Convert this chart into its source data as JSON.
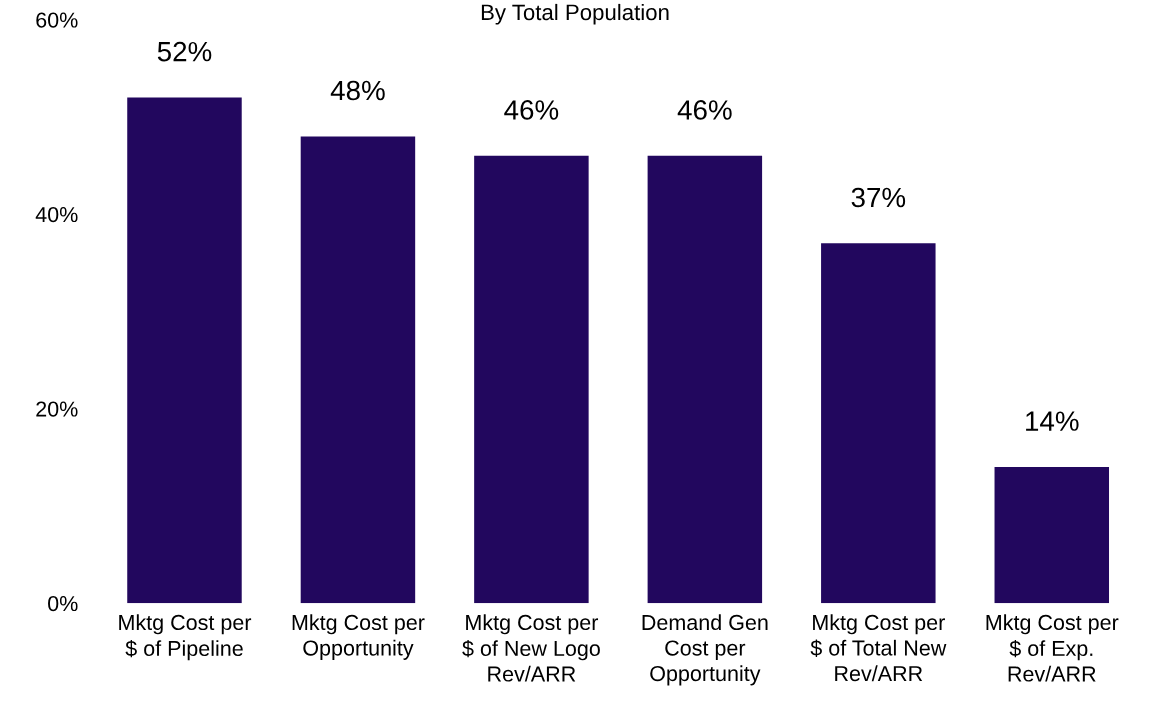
{
  "chart_data": {
    "type": "bar",
    "title": "By Total Population",
    "categories": [
      "Mktg Cost per\n$ of Pipeline",
      "Mktg Cost per\nOpportunity",
      "Mktg Cost per\n$ of New Logo\nRev/ARR",
      "Demand Gen\nCost per\nOpportunity",
      "Mktg Cost per\n$ of Total New\nRev/ARR",
      "Mktg Cost per\n$ of Exp.\nRev/ARR"
    ],
    "values": [
      52,
      48,
      46,
      46,
      37,
      14
    ],
    "value_labels": [
      "52%",
      "48%",
      "46%",
      "46%",
      "37%",
      "14%"
    ],
    "color": "#22075e",
    "ylim": [
      0,
      60
    ],
    "yticks": [
      {
        "value": 0,
        "label": "0%"
      },
      {
        "value": 20,
        "label": "20%"
      },
      {
        "value": 40,
        "label": "40%"
      },
      {
        "value": 60,
        "label": "60%"
      }
    ],
    "grid": false,
    "legend": false
  }
}
